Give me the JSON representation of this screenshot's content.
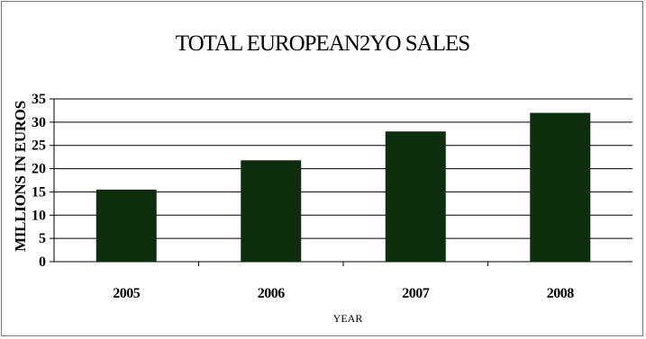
{
  "chart_data": {
    "type": "bar",
    "title": "TOTAL EUROPEAN2YO SALES",
    "xlabel": "YEAR",
    "ylabel": "MILLIONS IN EUROS",
    "categories": [
      "2005",
      "2006",
      "2007",
      "2008"
    ],
    "values": [
      15.5,
      21.8,
      28,
      32
    ],
    "ylim": [
      0,
      35
    ],
    "yticks": [
      "0",
      "5",
      "10",
      "15",
      "20",
      "25",
      "30",
      "35"
    ],
    "grid": true,
    "legend": "none",
    "colors": {
      "bar": "#0d2e0d",
      "grid": "#000000"
    }
  }
}
